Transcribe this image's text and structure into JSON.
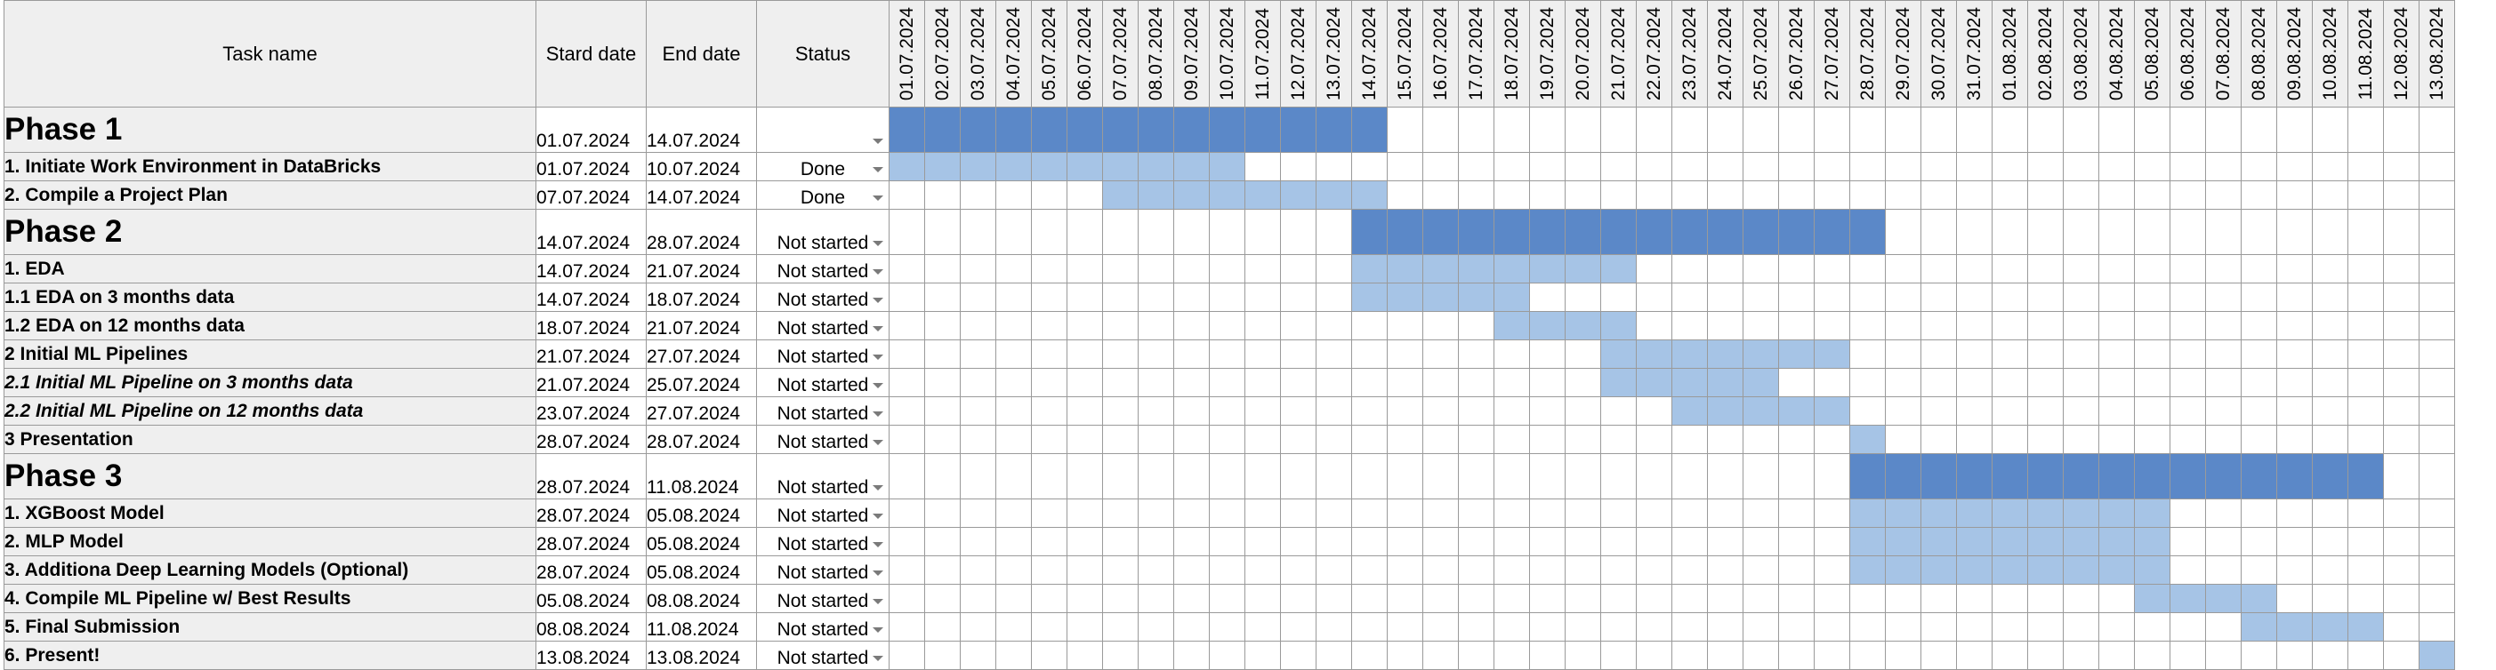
{
  "headers": {
    "task_name": "Task name",
    "start_date": "Stard date",
    "end_date": "End date",
    "status": "Status"
  },
  "days": [
    "01.07.2024",
    "02.07.2024",
    "03.07.2024",
    "04.07.2024",
    "05.07.2024",
    "06.07.2024",
    "07.07.2024",
    "08.07.2024",
    "09.07.2024",
    "10.07.2024",
    "11.07.2024",
    "12.07.2024",
    "13.07.2024",
    "14.07.2024",
    "15.07.2024",
    "16.07.2024",
    "17.07.2024",
    "18.07.2024",
    "19.07.2024",
    "20.07.2024",
    "21.07.2024",
    "22.07.2024",
    "23.07.2024",
    "24.07.2024",
    "25.07.2024",
    "26.07.2024",
    "27.07.2024",
    "28.07.2024",
    "29.07.2024",
    "30.07.2024",
    "31.07.2024",
    "01.08.2024",
    "02.08.2024",
    "03.08.2024",
    "04.08.2024",
    "05.08.2024",
    "06.08.2024",
    "07.08.2024",
    "08.08.2024",
    "09.08.2024",
    "10.08.2024",
    "11.08.2024",
    "12.08.2024",
    "13.08.2024"
  ],
  "colors": {
    "phase_bar": "#5b88c8",
    "task_bar": "#a6c4e6",
    "header_bg": "#efefef",
    "grid": "#9a9a9a"
  },
  "rows": [
    {
      "kind": "phase",
      "name": "Phase 1",
      "start": "01.07.2024",
      "end": "14.07.2024",
      "status": "",
      "italic": false
    },
    {
      "kind": "task",
      "name": "1. Initiate Work Environment in DataBricks",
      "start": "01.07.2024",
      "end": "10.07.2024",
      "status": "Done",
      "italic": false
    },
    {
      "kind": "task",
      "name": "2. Compile a Project Plan",
      "start": "07.07.2024",
      "end": "14.07.2024",
      "status": "Done",
      "italic": false
    },
    {
      "kind": "phase",
      "name": "Phase 2",
      "start": "14.07.2024",
      "end": "28.07.2024",
      "status": "Not started",
      "italic": false
    },
    {
      "kind": "task",
      "name": "1. EDA",
      "start": "14.07.2024",
      "end": "21.07.2024",
      "status": "Not started",
      "italic": false
    },
    {
      "kind": "task",
      "name": "1.1 EDA on 3 months data",
      "start": "14.07.2024",
      "end": "18.07.2024",
      "status": "Not started",
      "italic": false
    },
    {
      "kind": "task",
      "name": "1.2 EDA on 12 months data",
      "start": "18.07.2024",
      "end": "21.07.2024",
      "status": "Not started",
      "italic": false
    },
    {
      "kind": "task",
      "name": "2 Initial ML Pipelines",
      "start": "21.07.2024",
      "end": "27.07.2024",
      "status": "Not started",
      "italic": false
    },
    {
      "kind": "task",
      "name": "2.1 Initial ML Pipeline on 3 months data",
      "start": "21.07.2024",
      "end": "25.07.2024",
      "status": "Not started",
      "italic": true
    },
    {
      "kind": "task",
      "name": "2.2 Initial ML Pipeline on 12 months data",
      "start": "23.07.2024",
      "end": "27.07.2024",
      "status": "Not started",
      "italic": true
    },
    {
      "kind": "task",
      "name": "3 Presentation",
      "start": "28.07.2024",
      "end": "28.07.2024",
      "status": "Not started",
      "italic": false
    },
    {
      "kind": "phase",
      "name": "Phase 3",
      "start": "28.07.2024",
      "end": "11.08.2024",
      "status": "Not started",
      "italic": false
    },
    {
      "kind": "task",
      "name": "1. XGBoost Model",
      "start": "28.07.2024",
      "end": "05.08.2024",
      "status": "Not started",
      "italic": false
    },
    {
      "kind": "task",
      "name": "2. MLP Model",
      "start": "28.07.2024",
      "end": "05.08.2024",
      "status": "Not started",
      "italic": false
    },
    {
      "kind": "task",
      "name": "3. Additiona Deep Learning Models (Optional)",
      "start": "28.07.2024",
      "end": "05.08.2024",
      "status": "Not started",
      "italic": false
    },
    {
      "kind": "task",
      "name": "4. Compile ML Pipeline w/ Best Results",
      "start": "05.08.2024",
      "end": "08.08.2024",
      "status": "Not started",
      "italic": false
    },
    {
      "kind": "task",
      "name": "5. Final Submission",
      "start": "08.08.2024",
      "end": "11.08.2024",
      "status": "Not started",
      "italic": false
    },
    {
      "kind": "task",
      "name": "6. Present!",
      "start": "13.08.2024",
      "end": "13.08.2024",
      "status": "Not started",
      "italic": false
    }
  ]
}
